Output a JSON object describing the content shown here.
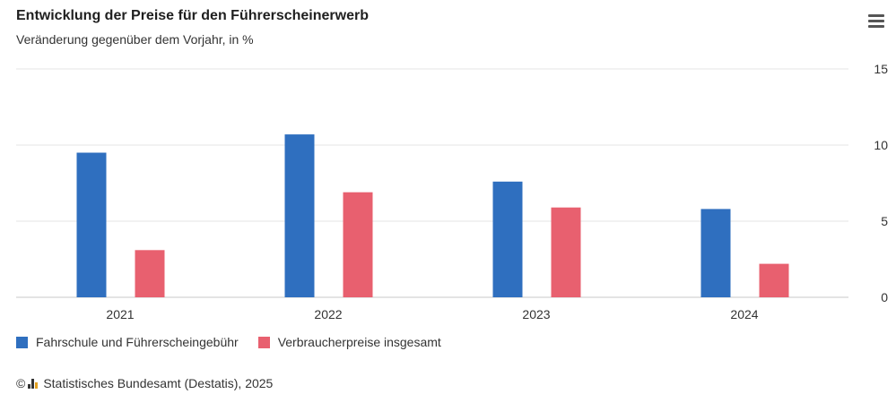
{
  "header": {
    "title": "Entwicklung der Preise für den Führerscheinerwerb",
    "subtitle": "Veränderung gegenüber dem Vorjahr, in %"
  },
  "menu": {
    "icon": "hamburger-menu-icon"
  },
  "colors": {
    "series1": "#2f6fbf",
    "series2": "#e8606f",
    "grid": "#e6e6e6",
    "axis": "#c8c8c8"
  },
  "chart_data": {
    "type": "bar",
    "categories": [
      "2021",
      "2022",
      "2023",
      "2024"
    ],
    "series": [
      {
        "name": "Fahrschule und Führerscheingebühr",
        "values": [
          9.5,
          10.7,
          7.6,
          5.8
        ]
      },
      {
        "name": "Verbraucherpreise insgesamt",
        "values": [
          3.1,
          6.9,
          5.9,
          2.2
        ]
      }
    ],
    "ylim": [
      0,
      15
    ],
    "yticks": [
      "0",
      "5",
      "10",
      "15"
    ],
    "y_axis_side": "right",
    "grid": true,
    "legend_position": "bottom-left"
  },
  "footer": {
    "copyright": "©",
    "logo_icon": "destatis-logo-icon",
    "source": "Statistisches Bundesamt (Destatis), 2025"
  }
}
